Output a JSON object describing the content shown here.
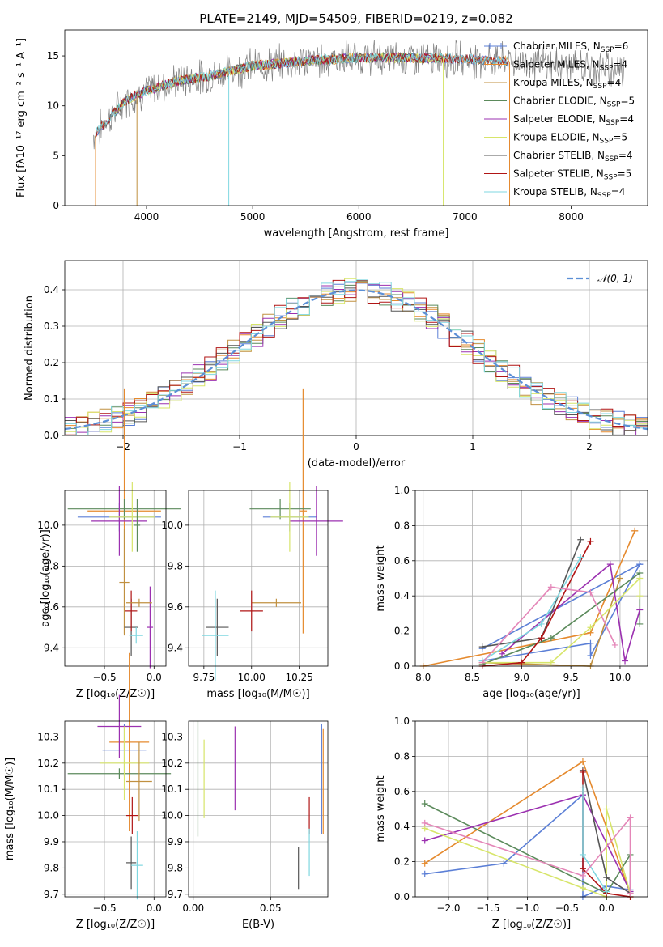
{
  "title": "PLATE=2149, MJD=54509, FIBERID=0219, z=0.082",
  "colors": {
    "Chabrier MILES": "#5b7fd6",
    "Salpeter MILES": "#e58a2e",
    "Kroupa MILES": "#c09040",
    "Chabrier ELODIE": "#5b8a5b",
    "Salpeter ELODIE": "#9b30b0",
    "Kroupa ELODIE": "#d7e56a",
    "Chabrier STELIB": "#555555",
    "Salpeter STELIB": "#b01515",
    "Kroupa STELIB": "#7fd7e0",
    "data": "#808080",
    "normal": "#5b8fd6"
  },
  "chart_data": [
    {
      "type": "line",
      "panel": "spectrum",
      "title": "PLATE=2149, MJD=54509, FIBERID=0219, z=0.082",
      "xlabel": "wavelength [Angstrom, rest frame]",
      "ylabel": "Flux [fλ10⁻¹⁷ erg cm⁻² s⁻¹ A⁻¹]",
      "xlim": [
        3230,
        8720
      ],
      "ylim": [
        0,
        17.6
      ],
      "xticks": [
        "4000",
        "5000",
        "6000",
        "7000",
        "8000"
      ],
      "yticks": [
        "0",
        "5",
        "10",
        "15"
      ],
      "legend_position": "right",
      "continuum": {
        "x": [
          3500,
          3800,
          4000,
          4300,
          4600,
          5000,
          5500,
          6000,
          6500,
          7000,
          7500,
          8000,
          8500
        ],
        "y": [
          7.0,
          10.5,
          11.5,
          12.5,
          13.0,
          14.0,
          14.5,
          14.8,
          14.8,
          14.7,
          14.4,
          14.0,
          13.6
        ]
      },
      "series": [
        {
          "name": "Chabrier MILES, N_SSP=6"
        },
        {
          "name": "Salpeter MILES, N_SSP=4"
        },
        {
          "name": "Kroupa MILES, N_SSP=4"
        },
        {
          "name": "Chabrier ELODIE, N_SSP=5"
        },
        {
          "name": "Salpeter ELODIE, N_SSP=4"
        },
        {
          "name": "Kroupa ELODIE, N_SSP=5"
        },
        {
          "name": "Chabrier STELIB, N_SSP=4"
        },
        {
          "name": "Salpeter STELIB, N_SSP=5"
        },
        {
          "name": "Kroupa STELIB, N_SSP=4"
        }
      ],
      "legend_rich": [
        [
          "Chabrier MILES, N",
          "SSP",
          "=6"
        ],
        [
          "Salpeter MILES, N",
          "SSP",
          "=4"
        ],
        [
          "Kroupa MILES, N",
          "SSP",
          "=4"
        ],
        [
          "Chabrier ELODIE, N",
          "SSP",
          "=5"
        ],
        [
          "Salpeter ELODIE, N",
          "SSP",
          "=4"
        ],
        [
          "Kroupa ELODIE, N",
          "SSP",
          "=5"
        ],
        [
          "Chabrier STELIB, N",
          "SSP",
          "=4"
        ],
        [
          "Salpeter STELIB, N",
          "SSP",
          "=5"
        ],
        [
          "Kroupa STELIB, N",
          "SSP",
          "=4"
        ]
      ]
    },
    {
      "type": "line",
      "panel": "residual histogram",
      "xlabel": "(data-model)/error",
      "ylabel": "Normed distribution",
      "xlim": [
        -2.5,
        2.5
      ],
      "ylim": [
        0,
        0.48
      ],
      "xticks": [
        "−2",
        "−1",
        "0",
        "1",
        "2"
      ],
      "yticks": [
        "0.0",
        "0.1",
        "0.2",
        "0.3",
        "0.4"
      ],
      "legend_position": "top-right",
      "series": [
        {
          "name": "𝒩(0, 1)",
          "style": "dashed"
        }
      ]
    },
    {
      "type": "scatter",
      "panel": "Z vs age",
      "xlabel": "Z [log₁₀(Z/Z☉)]",
      "ylabel": "age  [log₁₀(age/yr)]",
      "xlim": [
        -0.9,
        0.12
      ],
      "ylim": [
        9.31,
        10.17
      ],
      "xticks": [
        "−0.5",
        "0.0"
      ],
      "yticks": [
        "9.4",
        "9.6",
        "9.8",
        "10.0"
      ],
      "points": [
        {
          "model": "Chabrier MILES",
          "x": -0.35,
          "y": 10.04,
          "xerr": 0.42,
          "yerr": 0.07
        },
        {
          "model": "Salpeter MILES",
          "x": -0.3,
          "y": 10.07,
          "xerr": 0.37,
          "yerr": 0.6
        },
        {
          "model": "Kroupa MILES",
          "x": -0.3,
          "y": 9.72,
          "xerr": 0.05,
          "yerr": 0.26
        },
        {
          "model": "Chabrier ELODIE",
          "x": -0.3,
          "y": 10.08,
          "xerr": 0.57,
          "yerr": 0.05
        },
        {
          "model": "Salpeter ELODIE",
          "x": -0.35,
          "y": 10.02,
          "xerr": 0.28,
          "yerr": 0.17
        },
        {
          "model": "Kroupa ELODIE",
          "x": -0.22,
          "y": 10.04,
          "xerr": 0.23,
          "yerr": 0.17
        },
        {
          "model": "Chabrier STELIB",
          "x": -0.23,
          "y": 9.5,
          "xerr": 0.07,
          "yerr": 0.14
        },
        {
          "model": "Salpeter STELIB",
          "x": -0.23,
          "y": 9.58,
          "xerr": 0.06,
          "yerr": 0.1
        },
        {
          "model": "Kroupa STELIB",
          "x": -0.18,
          "y": 9.46,
          "xerr": 0.07,
          "yerr": 0.04
        },
        {
          "model": "Chabrier ELODIE",
          "x": -0.17,
          "y": 10.0,
          "xerr": 0.03,
          "yerr": 0.13
        },
        {
          "model": "Salpeter ELODIE",
          "x": -0.04,
          "y": 9.5,
          "xerr": 0.03,
          "yerr": 0.2
        },
        {
          "model": "Kroupa MILES",
          "x": -0.15,
          "y": 9.62,
          "xerr": 0.13,
          "yerr": 0.02
        }
      ]
    },
    {
      "type": "scatter",
      "panel": "mass vs age",
      "xlabel": "mass [log₁₀(M/M☉)]",
      "ylabel": "",
      "xlim": [
        9.67,
        10.4
      ],
      "ylim": [
        9.31,
        10.17
      ],
      "xticks": [
        "9.75",
        "10.00",
        "10.25"
      ],
      "yticks": [
        "9.4",
        "9.6",
        "9.8",
        "10.0"
      ],
      "points": [
        {
          "model": "Chabrier MILES",
          "x": 10.2,
          "y": 10.04,
          "xerr": 0.14,
          "yerr": 0.07
        },
        {
          "model": "Salpeter MILES",
          "x": 10.27,
          "y": 10.07,
          "xerr": 0.02,
          "yerr": 0.6
        },
        {
          "model": "Kroupa MILES",
          "x": 10.13,
          "y": 9.62,
          "xerr": 0.13,
          "yerr": 0.02
        },
        {
          "model": "Chabrier ELODIE",
          "x": 10.15,
          "y": 10.08,
          "xerr": 0.16,
          "yerr": 0.05
        },
        {
          "model": "Salpeter ELODIE",
          "x": 10.34,
          "y": 10.02,
          "xerr": 0.14,
          "yerr": 0.17
        },
        {
          "model": "Kroupa ELODIE",
          "x": 10.2,
          "y": 10.04,
          "xerr": 0.1,
          "yerr": 0.17
        },
        {
          "model": "Chabrier STELIB",
          "x": 9.82,
          "y": 9.5,
          "xerr": 0.06,
          "yerr": 0.14
        },
        {
          "model": "Salpeter STELIB",
          "x": 10.0,
          "y": 9.58,
          "xerr": 0.06,
          "yerr": 0.1
        },
        {
          "model": "Kroupa STELIB",
          "x": 9.81,
          "y": 9.46,
          "xerr": 0.07,
          "yerr": 0.22
        }
      ]
    },
    {
      "type": "line",
      "panel": "age vs mass weight",
      "xlabel": "age  [log₁₀(age/yr)]",
      "ylabel": "mass weight",
      "xlim": [
        7.92,
        10.28
      ],
      "ylim": [
        0,
        1.0
      ],
      "xticks": [
        "8.0",
        "8.5",
        "9.0",
        "9.5",
        "10.0"
      ],
      "yticks": [
        "0.0",
        "0.2",
        "0.4",
        "0.6",
        "0.8",
        "1.0"
      ],
      "series": [
        {
          "model": "Chabrier MILES",
          "x": [
            8.6,
            9.7,
            9.7,
            10.2,
            10.2,
            8.6
          ],
          "y": [
            0.03,
            0.13,
            0.06,
            0.58,
            0.58,
            0.1
          ]
        },
        {
          "model": "Salpeter MILES",
          "x": [
            8.0,
            9.7,
            10.15,
            10.15
          ],
          "y": [
            0.0,
            0.19,
            0.77,
            0.77
          ]
        },
        {
          "model": "Kroupa MILES",
          "x": [
            8.6,
            9.7,
            10.0
          ],
          "y": [
            0.02,
            0.0,
            0.5
          ]
        },
        {
          "model": "Chabrier ELODIE",
          "x": [
            8.6,
            9.3,
            10.2,
            10.2
          ],
          "y": [
            0.01,
            0.16,
            0.53,
            0.24
          ]
        },
        {
          "model": "Salpeter ELODIE",
          "x": [
            8.8,
            9.9,
            10.05,
            10.2
          ],
          "y": [
            0.07,
            0.58,
            0.03,
            0.32
          ]
        },
        {
          "model": "Kroupa ELODIE",
          "x": [
            8.6,
            9.3,
            9.7,
            10.2,
            10.2
          ],
          "y": [
            0.02,
            0.02,
            0.22,
            0.5,
            0.4
          ]
        },
        {
          "model": "Chabrier STELIB",
          "x": [
            8.6,
            9.2,
            9.6
          ],
          "y": [
            0.11,
            0.16,
            0.72
          ]
        },
        {
          "model": "Salpeter STELIB",
          "x": [
            8.6,
            9.0,
            9.2,
            9.7
          ],
          "y": [
            0.0,
            0.02,
            0.16,
            0.71
          ]
        },
        {
          "model": "Kroupa STELIB",
          "x": [
            8.6,
            9.2,
            9.6
          ],
          "y": [
            0.03,
            0.24,
            0.62
          ]
        },
        {
          "model": "Kroupa MILES pink",
          "x": [
            8.6,
            9.3,
            9.7,
            9.95
          ],
          "y": [
            0.02,
            0.45,
            0.42,
            0.12
          ]
        }
      ]
    },
    {
      "type": "scatter",
      "panel": "Z vs mass",
      "xlabel": "Z [log₁₀(Z/Z☉)]",
      "ylabel": "mass [log₁₀(M/M☉)]",
      "xlim": [
        -0.9,
        0.12
      ],
      "ylim": [
        9.69,
        10.36
      ],
      "xticks": [
        "−0.5",
        "0.0"
      ],
      "yticks": [
        "9.7",
        "9.8",
        "9.9",
        "10.0",
        "10.1",
        "10.2",
        "10.3"
      ],
      "points": [
        {
          "model": "Chabrier MILES",
          "x": -0.3,
          "y": 10.25,
          "xerr": 0.22,
          "yerr": 0.1
        },
        {
          "model": "Salpeter MILES",
          "x": -0.25,
          "y": 10.28,
          "xerr": 0.2,
          "yerr": 0.34
        },
        {
          "model": "Chabrier ELODIE",
          "x": -0.35,
          "y": 10.16,
          "xerr": 0.52,
          "yerr": 0.02
        },
        {
          "model": "Salpeter ELODIE",
          "x": -0.35,
          "y": 10.34,
          "xerr": 0.22,
          "yerr": 0.12
        },
        {
          "model": "Kroupa ELODIE",
          "x": -0.3,
          "y": 10.2,
          "xerr": 0.25,
          "yerr": 0.14
        },
        {
          "model": "Chabrier STELIB",
          "x": -0.23,
          "y": 9.82,
          "xerr": 0.05,
          "yerr": 0.1
        },
        {
          "model": "Salpeter STELIB",
          "x": -0.22,
          "y": 10.0,
          "xerr": 0.06,
          "yerr": 0.07
        },
        {
          "model": "Kroupa STELIB",
          "x": -0.17,
          "y": 9.81,
          "xerr": 0.06,
          "yerr": 0.13
        },
        {
          "model": "Kroupa MILES",
          "x": -0.15,
          "y": 10.13,
          "xerr": 0.13,
          "yerr": 0.15
        }
      ]
    },
    {
      "type": "scatter",
      "panel": "E(B-V) vs mass",
      "xlabel": "E(B-V)",
      "ylabel": "",
      "xlim": [
        -0.003,
        0.087
      ],
      "ylim": [
        9.69,
        10.36
      ],
      "xticks": [
        "0.00",
        "0.05"
      ],
      "yticks": [
        "9.7",
        "9.8",
        "9.9",
        "10.0",
        "10.1",
        "10.2",
        "10.3"
      ],
      "points": [
        {
          "model": "Chabrier ELODIE",
          "x": 0.003,
          "y": 10.14,
          "yerr": 0.22
        },
        {
          "model": "Kroupa ELODIE",
          "x": 0.007,
          "y": 10.14,
          "yerr": 0.15
        },
        {
          "model": "Salpeter ELODIE",
          "x": 0.027,
          "y": 10.18,
          "yerr": 0.16
        },
        {
          "model": "Chabrier STELIB",
          "x": 0.068,
          "y": 9.8,
          "yerr": 0.08
        },
        {
          "model": "Salpeter STELIB",
          "x": 0.075,
          "y": 10.0,
          "yerr": 0.07
        },
        {
          "model": "Kroupa STELIB",
          "x": 0.075,
          "y": 9.86,
          "yerr": 0.09
        },
        {
          "model": "Chabrier MILES",
          "x": 0.083,
          "y": 10.14,
          "yerr": 0.21
        },
        {
          "model": "Salpeter MILES",
          "x": 0.084,
          "y": 10.13,
          "yerr": 0.2
        }
      ]
    },
    {
      "type": "line",
      "panel": "Z vs mass weight",
      "xlabel": "Z [log₁₀(Z/Z☉)]",
      "ylabel": "mass weight",
      "xlim": [
        -2.42,
        0.52
      ],
      "ylim": [
        0,
        1.0
      ],
      "xticks": [
        "−2.0",
        "−1.5",
        "−1.0",
        "−0.5",
        "0.0"
      ],
      "yticks": [
        "0.0",
        "0.2",
        "0.4",
        "0.6",
        "0.8",
        "1.0"
      ],
      "series": [
        {
          "model": "Chabrier MILES",
          "x": [
            -2.3,
            -1.3,
            -0.3,
            -0.3,
            0.0,
            0.3
          ],
          "y": [
            0.13,
            0.19,
            0.58,
            0.0,
            0.06,
            0.04
          ]
        },
        {
          "model": "Salpeter MILES",
          "x": [
            -2.3,
            -0.3,
            0.3,
            0.3
          ],
          "y": [
            0.19,
            0.77,
            0.02,
            0.0
          ]
        },
        {
          "model": "Chabrier ELODIE",
          "x": [
            -2.3,
            0.0,
            0.3,
            0.3
          ],
          "y": [
            0.53,
            0.02,
            0.24,
            0.03
          ]
        },
        {
          "model": "Salpeter ELODIE",
          "x": [
            -2.3,
            -0.3,
            0.3
          ],
          "y": [
            0.32,
            0.58,
            0.03
          ]
        },
        {
          "model": "Kroupa ELODIE",
          "x": [
            -2.3,
            -0.3,
            0.0,
            0.0,
            0.3
          ],
          "y": [
            0.39,
            0.05,
            0.0,
            0.5,
            0.02
          ]
        },
        {
          "model": "Chabrier STELIB",
          "x": [
            -0.3,
            0.0,
            0.3
          ],
          "y": [
            0.72,
            0.11,
            0.02
          ]
        },
        {
          "model": "Salpeter STELIB",
          "x": [
            -0.3,
            -0.3,
            0.0,
            0.3
          ],
          "y": [
            0.71,
            0.16,
            0.02,
            0.0
          ]
        },
        {
          "model": "Kroupa STELIB",
          "x": [
            -0.3,
            -0.3,
            0.0
          ],
          "y": [
            0.62,
            0.24,
            0.03
          ]
        },
        {
          "model": "Kroupa MILES pink",
          "x": [
            -2.3,
            -0.3,
            0.3,
            0.3
          ],
          "y": [
            0.42,
            0.12,
            0.45,
            0.02
          ]
        }
      ]
    }
  ]
}
